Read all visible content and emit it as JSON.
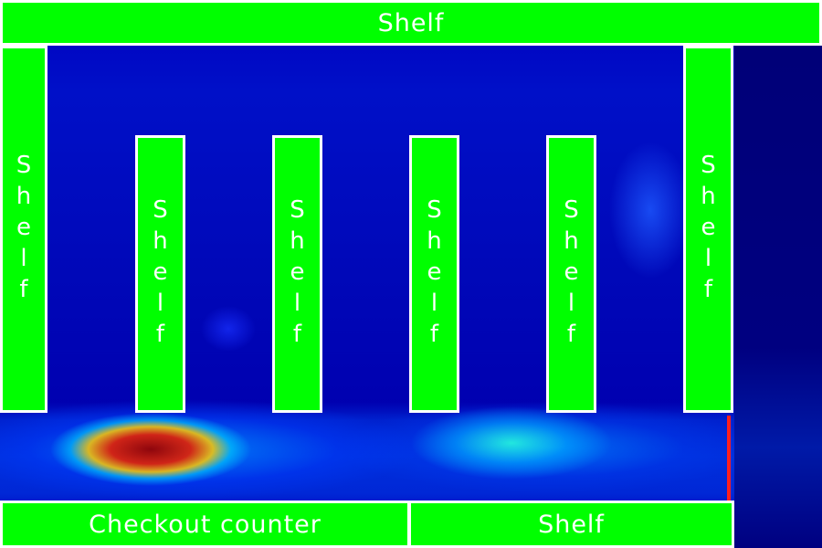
{
  "layout_labels": {
    "top_shelf": "Shelf",
    "left_wall_shelf": "Shelf",
    "aisle_shelf_1": "Shelf",
    "aisle_shelf_2": "Shelf",
    "aisle_shelf_3": "Shelf",
    "aisle_shelf_4": "Shelf",
    "right_wall_shelf": "Shelf",
    "checkout_counter": "Checkout counter",
    "bottom_shelf": "Shelf"
  },
  "colors": {
    "fixture_fill": "#00ff00",
    "fixture_border": "#ffffff",
    "label_text": "#ffffff",
    "heat_low": "#0000c0",
    "heat_mid": "#00e0ff",
    "heat_high": "#c00000",
    "marker": "#ff1e1e"
  }
}
